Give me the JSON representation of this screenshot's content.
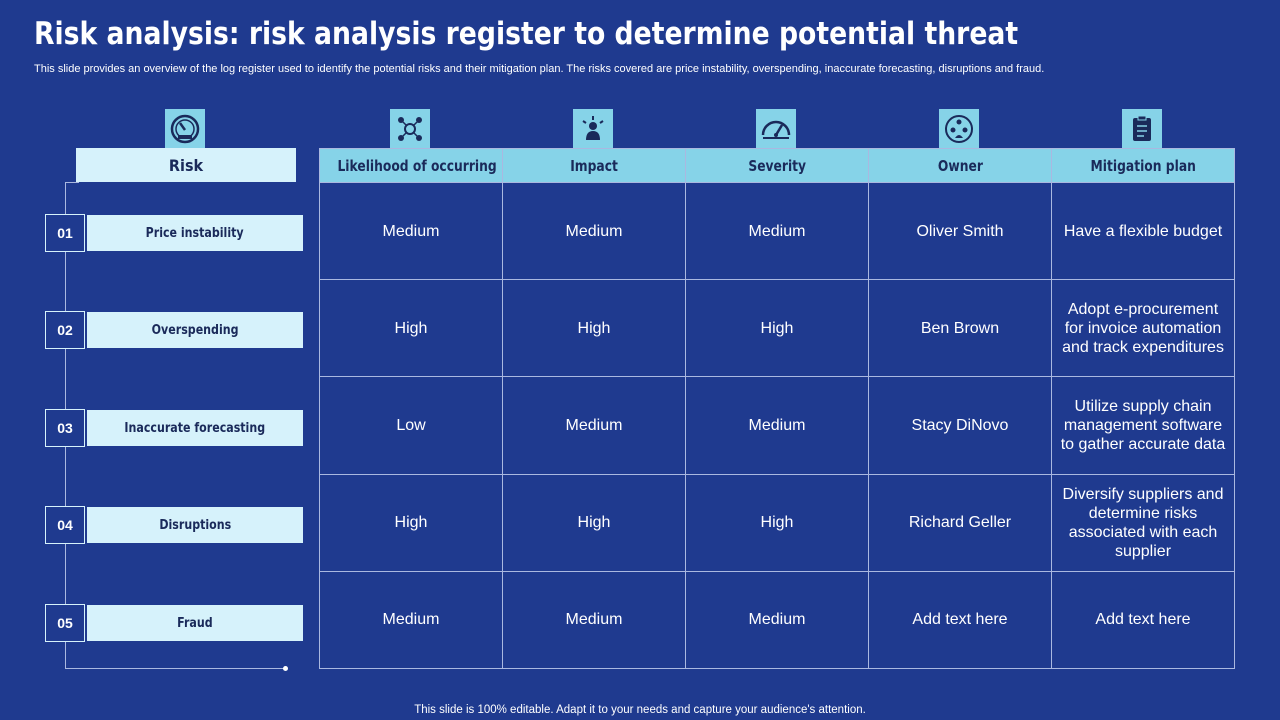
{
  "title": "Risk analysis: risk analysis register to determine potential threat",
  "subtitle": "This slide provides an overview of the log register used to identify the potential risks and their mitigation plan. The risks covered are price instability, overspending, inaccurate forecasting, disruptions and fraud.",
  "footer": "This slide is 100% editable. Adapt it to your needs and capture your audience's attention.",
  "risk_header": "Risk",
  "risks": [
    {
      "num": "01",
      "label": "Price instability"
    },
    {
      "num": "02",
      "label": "Overspending"
    },
    {
      "num": "03",
      "label": "Inaccurate forecasting"
    },
    {
      "num": "04",
      "label": "Disruptions"
    },
    {
      "num": "05",
      "label": "Fraud"
    }
  ],
  "columns": [
    "Likelihood of occurring",
    "Impact",
    "Severity",
    "Owner",
    "Mitigation plan"
  ],
  "icons": [
    "gauge-meter-icon",
    "network-nodes-icon",
    "presenter-impact-icon",
    "speedometer-icon",
    "owner-people-icon",
    "clipboard-plan-icon"
  ],
  "rows": [
    [
      "Medium",
      "Medium",
      "Medium",
      "Oliver Smith",
      "Have a flexible budget"
    ],
    [
      "High",
      "High",
      "High",
      "Ben Brown",
      "Adopt e-procurement for invoice automation and track expenditures"
    ],
    [
      "Low",
      "Medium",
      "Medium",
      "Stacy DiNovo",
      "Utilize supply chain management software to gather accurate data"
    ],
    [
      "High",
      "High",
      "High",
      "Richard Geller",
      "Diversify suppliers and determine risks associated with each supplier"
    ],
    [
      "Medium",
      "Medium",
      "Medium",
      "Add text here",
      "Add text here"
    ]
  ],
  "colors": {
    "background": "#1f3a8f",
    "header_fill": "#86d3e8",
    "light_fill": "#d6f2fb",
    "grid": "#aab8e0"
  }
}
